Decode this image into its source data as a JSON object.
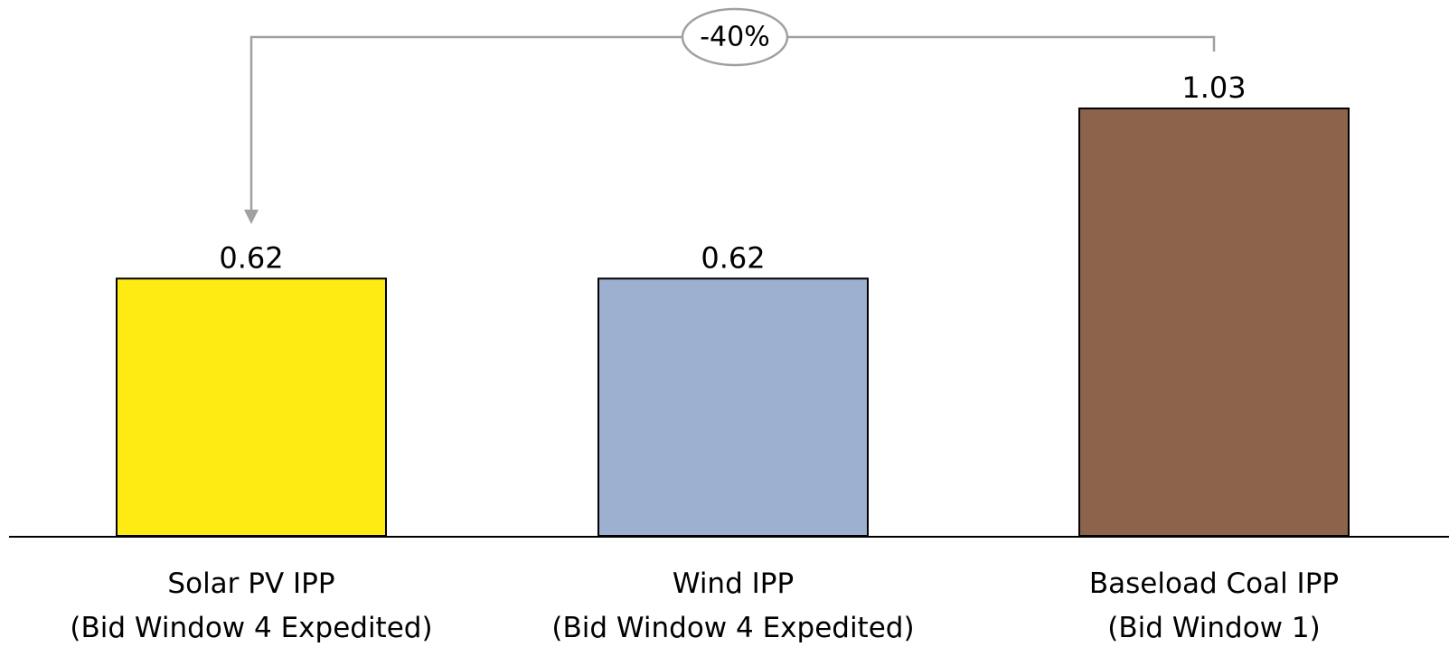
{
  "chart_data": {
    "type": "bar",
    "categories": [
      [
        "Solar PV IPP",
        "(Bid Window 4 Expedited)"
      ],
      [
        "Wind IPP",
        "(Bid Window 4 Expedited)"
      ],
      [
        "Baseload Coal IPP",
        "(Bid Window 1)"
      ]
    ],
    "values": [
      0.62,
      0.62,
      1.03
    ],
    "value_labels": [
      "0.62",
      "0.62",
      "1.03"
    ],
    "colors": [
      "#FFEB14",
      "#9DB0CF",
      "#8B644B"
    ],
    "bar_outline": "#000000",
    "axis_color": "#000000",
    "ylim": [
      0,
      1.03
    ],
    "grid": false,
    "legend": "none",
    "title": "",
    "xlabel": "",
    "ylabel": "",
    "annotation": {
      "text": "-40%",
      "from_index": 2,
      "to_index": 0,
      "color": "#A0A0A0"
    }
  }
}
